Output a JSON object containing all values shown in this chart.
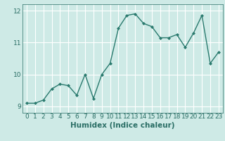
{
  "x": [
    0,
    1,
    2,
    3,
    4,
    5,
    6,
    7,
    8,
    9,
    10,
    11,
    12,
    13,
    14,
    15,
    16,
    17,
    18,
    19,
    20,
    21,
    22,
    23
  ],
  "y": [
    9.1,
    9.1,
    9.2,
    9.55,
    9.7,
    9.65,
    9.35,
    10.0,
    9.25,
    10.0,
    10.35,
    11.45,
    11.85,
    11.9,
    11.6,
    11.5,
    11.15,
    11.15,
    11.25,
    10.85,
    11.3,
    11.85,
    10.35,
    10.7
  ],
  "line_color": "#2a7a6e",
  "marker": "D",
  "marker_size": 2.0,
  "linewidth": 1.0,
  "xlabel": "Humidex (Indice chaleur)",
  "ylim": [
    8.8,
    12.2
  ],
  "xlim": [
    -0.5,
    23.5
  ],
  "yticks": [
    9,
    10,
    11,
    12
  ],
  "xticks": [
    0,
    1,
    2,
    3,
    4,
    5,
    6,
    7,
    8,
    9,
    10,
    11,
    12,
    13,
    14,
    15,
    16,
    17,
    18,
    19,
    20,
    21,
    22,
    23
  ],
  "bg_color": "#ceeae6",
  "grid_color": "#ffffff",
  "tick_label_fontsize": 6.5,
  "xlabel_fontsize": 7.5,
  "label_color": "#2a6e65"
}
